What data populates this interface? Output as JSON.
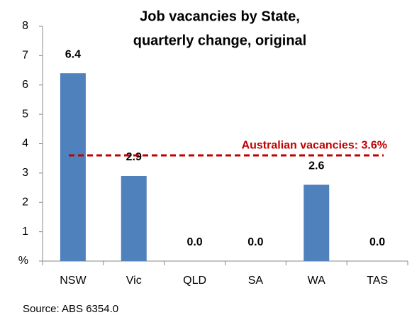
{
  "chart_data": {
    "type": "bar",
    "title": [
      "Job vacancies by State,",
      "quarterly change, original"
    ],
    "categories": [
      "NSW",
      "Vic",
      "QLD",
      "SA",
      "WA",
      "TAS"
    ],
    "values": [
      6.4,
      2.9,
      0,
      0,
      2.6,
      0
    ],
    "value_labels": [
      "6.4",
      "2.9",
      "0.0",
      "0.0",
      "2.6",
      "0.0"
    ],
    "color": "#4f81bd",
    "ylim": [
      0,
      8
    ],
    "yticks": [
      {
        "value": 0,
        "label": "%"
      },
      1,
      2,
      3,
      4,
      5,
      6,
      7,
      8
    ],
    "reference_line": {
      "value": 3.6,
      "label": "Australian vacancies: 3.6%",
      "color": "#c00000"
    },
    "source": "Source: ABS 6354.0"
  }
}
